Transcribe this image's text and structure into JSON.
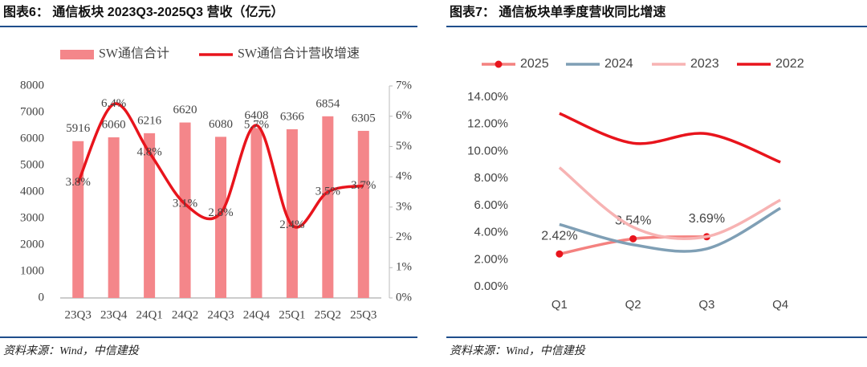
{
  "chart_data": [
    {
      "type": "bar",
      "title": "图表6： 通信板块 2023Q3-2025Q3 营收（亿元）",
      "source": "资料来源：Wind，中信建投",
      "categories": [
        "23Q3",
        "23Q4",
        "24Q1",
        "24Q2",
        "24Q3",
        "24Q4",
        "25Q1",
        "25Q2",
        "25Q3"
      ],
      "series": [
        {
          "name": "SW通信合计",
          "type": "bar",
          "color": "#f4868a",
          "values": [
            5916,
            6060,
            6216,
            6620,
            6080,
            6408,
            6366,
            6854,
            6305
          ]
        },
        {
          "name": "SW通信合计营收增速",
          "type": "line",
          "axis": "y2",
          "color": "#e8141c",
          "values": [
            3.8,
            6.4,
            4.8,
            3.1,
            2.8,
            5.7,
            2.4,
            3.5,
            3.7
          ],
          "value_labels": [
            "3.8%",
            "6.4%",
            "4.8%",
            "3.1%",
            "2.8%",
            "5.7%",
            "2.4%",
            "3.5%",
            "3.7%"
          ]
        }
      ],
      "ylim": [
        0,
        8000
      ],
      "yticks": [
        0,
        1000,
        2000,
        3000,
        4000,
        5000,
        6000,
        7000,
        8000
      ],
      "y2lim": [
        0,
        7
      ],
      "y2ticks": [
        {
          "value": 0,
          "label": "0%"
        },
        {
          "value": 1,
          "label": "1%"
        },
        {
          "value": 2,
          "label": "2%"
        },
        {
          "value": 3,
          "label": "3%"
        },
        {
          "value": 4,
          "label": "4%"
        },
        {
          "value": 5,
          "label": "5%"
        },
        {
          "value": 6,
          "label": "6%"
        },
        {
          "value": 7,
          "label": "7%"
        }
      ],
      "grid": false,
      "legend": "top"
    },
    {
      "type": "line",
      "title": "图表7： 通信板块单季度营收同比增速",
      "source": "资料来源：Wind，中信建投",
      "categories": [
        "Q1",
        "Q2",
        "Q3",
        "Q4"
      ],
      "series": [
        {
          "name": "2025",
          "color": "#f4817f",
          "marker_color": "#e8141c",
          "values": [
            2.42,
            3.54,
            3.69,
            null
          ],
          "value_labels": [
            "2.42%",
            "3.54%",
            "3.69%",
            null
          ]
        },
        {
          "name": "2024",
          "color": "#7f9fb5",
          "values": [
            4.6,
            3.1,
            2.8,
            5.8
          ]
        },
        {
          "name": "2023",
          "color": "#f7b3b3",
          "values": [
            8.8,
            4.4,
            3.7,
            6.4
          ]
        },
        {
          "name": "2022",
          "color": "#e8141c",
          "values": [
            12.8,
            10.6,
            11.3,
            9.2
          ]
        }
      ],
      "ylim": [
        0,
        14
      ],
      "yticks": [
        {
          "value": 0,
          "label": "0.00%"
        },
        {
          "value": 2,
          "label": "2.00%"
        },
        {
          "value": 4,
          "label": "4.00%"
        },
        {
          "value": 6,
          "label": "6.00%"
        },
        {
          "value": 8,
          "label": "8.00%"
        },
        {
          "value": 10,
          "label": "10.00%"
        },
        {
          "value": 12,
          "label": "12.00%"
        },
        {
          "value": 14,
          "label": "14.00%"
        }
      ],
      "grid": false,
      "legend": "top"
    }
  ]
}
